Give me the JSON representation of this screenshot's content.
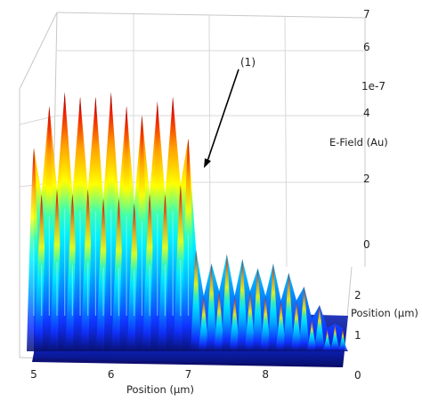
{
  "chart_data": {
    "type": "surface-3d",
    "x_axis": {
      "label": "Position (µm)",
      "ticks": [
        "5",
        "6",
        "7",
        "8"
      ],
      "range": [
        5,
        9
      ]
    },
    "y_axis": {
      "label": "Position (µm)",
      "ticks": [
        "0",
        "1",
        "2"
      ],
      "range": [
        0,
        3
      ]
    },
    "z_axis": {
      "label": "E-Field (Au)",
      "ticks": [
        "0",
        "2",
        "4",
        "6",
        "7"
      ],
      "exponent": "1e-7",
      "range": [
        0,
        7
      ]
    },
    "annotation": {
      "text": "(1)"
    },
    "colormap": [
      "#08106e",
      "#1030ff",
      "#00b4ff",
      "#00f0ff",
      "#3cffb0",
      "#ffff00",
      "#ffa000",
      "#f02000",
      "#900000"
    ],
    "grid": true,
    "series": [
      {
        "x": [
          5.0,
          5.1,
          5.2,
          5.3,
          5.4,
          5.5,
          5.6,
          5.7,
          5.8,
          5.9,
          6.0,
          6.1,
          6.2,
          6.3,
          6.4,
          6.5,
          6.6,
          6.7,
          6.8,
          6.9,
          7.0,
          7.1,
          7.2,
          7.3,
          7.4,
          7.5,
          7.6,
          7.7,
          7.8,
          7.9,
          8.0,
          8.1,
          8.2,
          8.3,
          8.4,
          8.5,
          8.6,
          8.7,
          8.8,
          8.9,
          9.0
        ],
        "peak_E": [
          4.4,
          3.4,
          5.3,
          3.5,
          5.6,
          3.4,
          5.5,
          3.5,
          5.5,
          3.3,
          5.6,
          3.3,
          5.3,
          3.2,
          5.1,
          3.4,
          5.4,
          3.4,
          5.5,
          3.6,
          4.6,
          2.2,
          1.2,
          1.9,
          1.3,
          2.1,
          1.2,
          2.0,
          1.3,
          1.8,
          1.2,
          1.9,
          1.1,
          1.7,
          1.1,
          1.4,
          0.7,
          1.0,
          0.5,
          0.6,
          0.5
        ]
      }
    ]
  }
}
